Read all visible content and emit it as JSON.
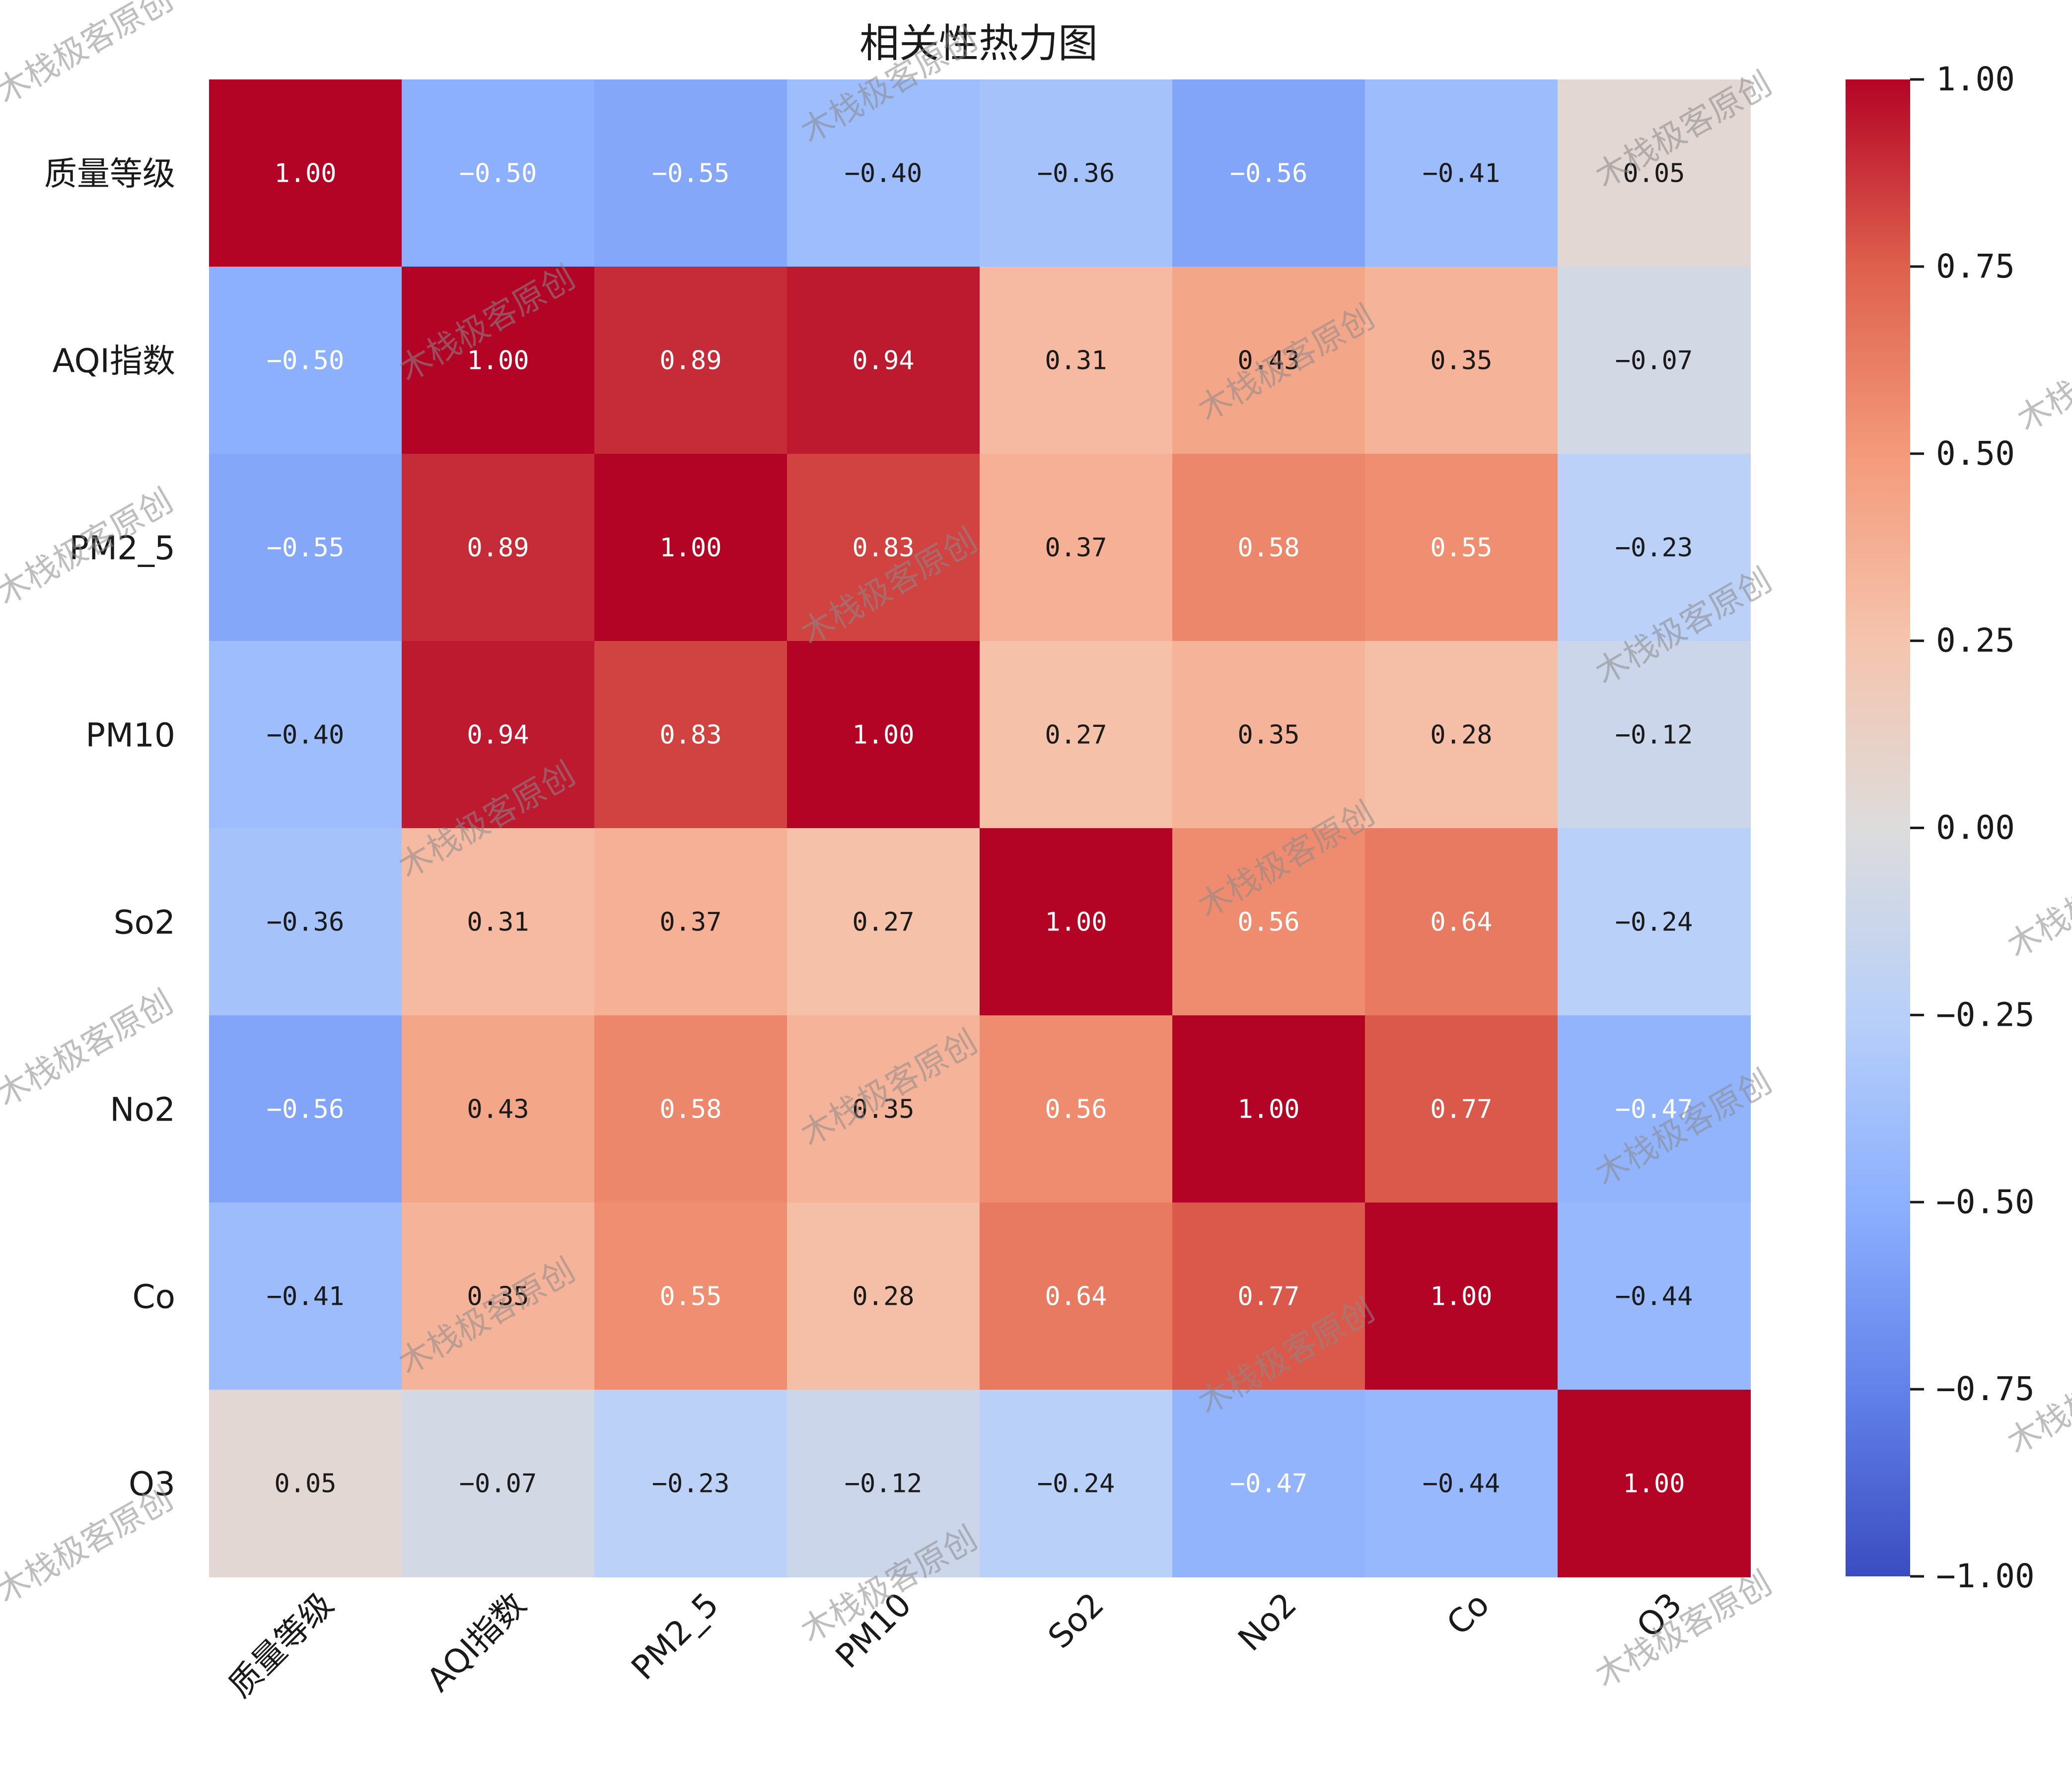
{
  "chart_data": {
    "type": "heatmap",
    "title": "相关性热力图",
    "xlabel": "",
    "ylabel": "",
    "labels": [
      "质量等级",
      "AQI指数",
      "PM2_5",
      "PM10",
      "So2",
      "No2",
      "Co",
      "O3"
    ],
    "matrix": [
      [
        1.0,
        -0.5,
        -0.55,
        -0.4,
        -0.36,
        -0.56,
        -0.41,
        0.05
      ],
      [
        -0.5,
        1.0,
        0.89,
        0.94,
        0.31,
        0.43,
        0.35,
        -0.07
      ],
      [
        -0.55,
        0.89,
        1.0,
        0.83,
        0.37,
        0.58,
        0.55,
        -0.23
      ],
      [
        -0.4,
        0.94,
        0.83,
        1.0,
        0.27,
        0.35,
        0.28,
        -0.12
      ],
      [
        -0.36,
        0.31,
        0.37,
        0.27,
        1.0,
        0.56,
        0.64,
        -0.24
      ],
      [
        -0.56,
        0.43,
        0.58,
        0.35,
        0.56,
        1.0,
        0.77,
        -0.47
      ],
      [
        -0.41,
        0.35,
        0.55,
        0.28,
        0.64,
        0.77,
        1.0,
        -0.44
      ],
      [
        0.05,
        -0.07,
        -0.23,
        -0.12,
        -0.24,
        -0.47,
        -0.44,
        1.0
      ]
    ],
    "value_format": "2 decimals",
    "colormap": "coolwarm",
    "vmin": -1.0,
    "vmax": 1.0,
    "colorbar_ticks": [
      "1.00",
      "0.75",
      "0.50",
      "0.25",
      "0.00",
      "−0.25",
      "−0.50",
      "−0.75",
      "−1.00"
    ],
    "colorbar_tick_values": [
      1.0,
      0.75,
      0.5,
      0.25,
      0.0,
      -0.25,
      -0.5,
      -0.75,
      -1.0
    ],
    "x_tick_rotation": "45 degrees",
    "grid": false,
    "colorbar_position": "right"
  },
  "watermark": {
    "text": "木栈极客原创"
  },
  "colors": {
    "cold": "#3b4cc0",
    "neutral": "#dddddd",
    "hot": "#b40426"
  }
}
